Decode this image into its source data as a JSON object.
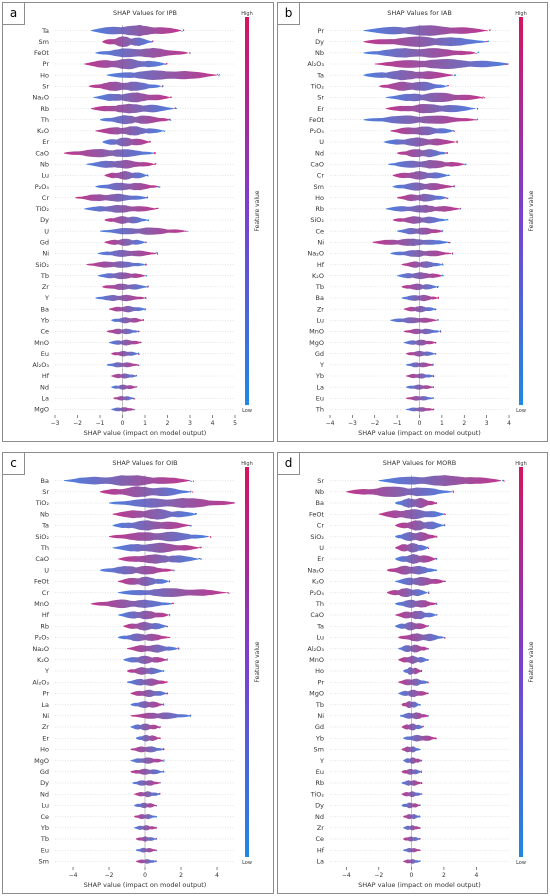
{
  "chart_data": [
    {
      "panel_letter": "a",
      "type": "violin",
      "title": "SHAP Values for IPB",
      "xlabel": "SHAP value (impact on model output)",
      "colorbar": {
        "label": "Feature value",
        "high": "High",
        "low": "Low",
        "low_color": "#1e88e5",
        "high_color": "#d5145f"
      },
      "xlim": [
        -3,
        5
      ],
      "xticks": [
        "−3",
        "−2",
        "−1",
        "0",
        "1",
        "2",
        "3",
        "4",
        "5"
      ],
      "features": [
        "Ta",
        "Sm",
        "FeOt",
        "Pr",
        "Ho",
        "Sr",
        "Na₂O",
        "Rb",
        "Th",
        "K₂O",
        "Er",
        "CaO",
        "Nb",
        "Lu",
        "P₂O₅",
        "Cr",
        "TiO₂",
        "Dy",
        "U",
        "Gd",
        "Ni",
        "SiO₂",
        "Tb",
        "Zr",
        "Y",
        "Ba",
        "Yb",
        "Ce",
        "MnO",
        "Eu",
        "Al₂O₃",
        "Hf",
        "Nd",
        "La",
        "MgO"
      ],
      "ranges": [
        [
          -1.4,
          2.6
        ],
        [
          -0.9,
          1.3
        ],
        [
          -1.2,
          2.9
        ],
        [
          -1.7,
          1.9
        ],
        [
          -0.7,
          4.2
        ],
        [
          -1.5,
          1.7
        ],
        [
          -1.3,
          2.1
        ],
        [
          -1.4,
          2.3
        ],
        [
          -1.0,
          2.1
        ],
        [
          -1.2,
          1.8
        ],
        [
          -0.9,
          1.2
        ],
        [
          -2.6,
          1.4
        ],
        [
          -1.6,
          1.4
        ],
        [
          -0.8,
          1.1
        ],
        [
          -1.2,
          1.6
        ],
        [
          -2.1,
          1.1
        ],
        [
          -1.7,
          1.5
        ],
        [
          -0.8,
          1.1
        ],
        [
          -1.0,
          2.8
        ],
        [
          -0.8,
          1.0
        ],
        [
          -1.1,
          1.5
        ],
        [
          -1.6,
          1.0
        ],
        [
          -1.1,
          1.0
        ],
        [
          -0.9,
          1.1
        ],
        [
          -1.2,
          1.0
        ],
        [
          -0.6,
          1.0
        ],
        [
          -0.5,
          0.9
        ],
        [
          -0.7,
          0.7
        ],
        [
          -0.6,
          0.8
        ],
        [
          -0.5,
          0.7
        ],
        [
          -0.7,
          0.7
        ],
        [
          -0.5,
          0.6
        ],
        [
          -0.5,
          0.6
        ],
        [
          -0.4,
          0.5
        ],
        [
          -0.5,
          0.5
        ]
      ]
    },
    {
      "panel_letter": "b",
      "type": "violin",
      "title": "SHAP Values for IAB",
      "xlabel": "SHAP value (impact on model output)",
      "colorbar": {
        "label": "Feature value",
        "high": "High",
        "low": "Low",
        "low_color": "#1e88e5",
        "high_color": "#d5145f"
      },
      "xlim": [
        -4,
        4
      ],
      "xticks": [
        "−4",
        "−3",
        "−2",
        "−1",
        "0",
        "1",
        "2",
        "3",
        "4"
      ],
      "features": [
        "Pr",
        "Dy",
        "Nb",
        "Al₂O₃",
        "Ta",
        "TiO₂",
        "Sr",
        "Er",
        "FeOt",
        "P₂O₅",
        "U",
        "Nd",
        "CaO",
        "Cr",
        "Sm",
        "Ho",
        "Rb",
        "SiO₂",
        "Ce",
        "Ni",
        "Na₂O",
        "Hf",
        "K₂O",
        "Tb",
        "Ba",
        "Zr",
        "Lu",
        "MnO",
        "MgO",
        "Gd",
        "Y",
        "Yb",
        "La",
        "Eu",
        "Th"
      ],
      "ranges": [
        [
          -2.5,
          3.0
        ],
        [
          -2.5,
          3.0
        ],
        [
          -2.5,
          2.5
        ],
        [
          -2.0,
          4.0
        ],
        [
          -2.5,
          1.5
        ],
        [
          -1.8,
          1.2
        ],
        [
          -1.5,
          2.8
        ],
        [
          -1.5,
          2.5
        ],
        [
          -2.5,
          2.5
        ],
        [
          -1.3,
          1.5
        ],
        [
          -1.6,
          1.6
        ],
        [
          -1.0,
          1.2
        ],
        [
          -1.4,
          2.0
        ],
        [
          -1.2,
          1.3
        ],
        [
          -1.2,
          1.5
        ],
        [
          -1.0,
          1.2
        ],
        [
          -1.5,
          1.8
        ],
        [
          -1.2,
          1.2
        ],
        [
          -1.0,
          1.0
        ],
        [
          -2.1,
          1.3
        ],
        [
          -1.3,
          1.4
        ],
        [
          -0.8,
          1.0
        ],
        [
          -1.0,
          1.0
        ],
        [
          -0.8,
          0.8
        ],
        [
          -0.8,
          0.8
        ],
        [
          -0.7,
          0.7
        ],
        [
          -1.3,
          0.8
        ],
        [
          -0.7,
          0.9
        ],
        [
          -0.7,
          0.7
        ],
        [
          -0.6,
          0.7
        ],
        [
          -0.6,
          0.6
        ],
        [
          -0.6,
          0.6
        ],
        [
          -0.6,
          0.6
        ],
        [
          -0.6,
          0.6
        ],
        [
          -0.6,
          0.6
        ]
      ]
    },
    {
      "panel_letter": "c",
      "type": "violin",
      "title": "SHAP Values for OIB",
      "xlabel": "SHAP value (impact on model output)",
      "colorbar": {
        "label": "Feature value",
        "high": "High",
        "low": "Low",
        "low_color": "#1e88e5",
        "high_color": "#d5145f"
      },
      "xlim": [
        -5,
        5
      ],
      "xticks": [
        "−4",
        "−2",
        "0",
        "2",
        "4"
      ],
      "xtick_values": [
        -4,
        -2,
        0,
        2,
        4
      ],
      "features": [
        "Ba",
        "Sr",
        "TiO₂",
        "Nb",
        "Ta",
        "SiO₂",
        "Th",
        "CaO",
        "U",
        "FeOt",
        "Cr",
        "MnO",
        "Hf",
        "Rb",
        "P₂O₅",
        "Na₂O",
        "K₂O",
        "Y",
        "Al₂O₃",
        "Pr",
        "La",
        "Ni",
        "Zr",
        "Er",
        "Ho",
        "MgO",
        "Gd",
        "Dy",
        "Nd",
        "Lu",
        "Ce",
        "Yb",
        "Tb",
        "Eu",
        "Sm"
      ],
      "ranges": [
        [
          -4.5,
          2.5
        ],
        [
          -2.5,
          2.5
        ],
        [
          -2.0,
          5.0
        ],
        [
          -1.8,
          2.8
        ],
        [
          -1.8,
          2.5
        ],
        [
          -2.0,
          3.5
        ],
        [
          -1.8,
          3.0
        ],
        [
          -1.5,
          3.0
        ],
        [
          -2.5,
          1.5
        ],
        [
          -1.5,
          1.3
        ],
        [
          -1.5,
          4.5
        ],
        [
          -3.0,
          1.5
        ],
        [
          -1.5,
          1.3
        ],
        [
          -1.2,
          1.2
        ],
        [
          -1.5,
          1.3
        ],
        [
          -1.0,
          1.8
        ],
        [
          -1.2,
          1.2
        ],
        [
          -1.0,
          1.0
        ],
        [
          -1.0,
          1.2
        ],
        [
          -0.8,
          1.2
        ],
        [
          -0.8,
          1.0
        ],
        [
          -0.8,
          2.5
        ],
        [
          -0.8,
          0.8
        ],
        [
          -0.5,
          0.8
        ],
        [
          -0.8,
          1.0
        ],
        [
          -0.8,
          1.0
        ],
        [
          -0.8,
          1.0
        ],
        [
          -0.7,
          0.8
        ],
        [
          -0.6,
          0.8
        ],
        [
          -0.6,
          0.6
        ],
        [
          -0.6,
          0.6
        ],
        [
          -0.6,
          0.6
        ],
        [
          -0.5,
          0.6
        ],
        [
          -0.5,
          0.6
        ],
        [
          -0.5,
          0.6
        ]
      ]
    },
    {
      "panel_letter": "d",
      "type": "violin",
      "title": "SHAP Values for MORB",
      "xlabel": "SHAP value (impact on model output)",
      "colorbar": {
        "label": "Feature value",
        "high": "High",
        "low": "Low",
        "low_color": "#1e88e5",
        "high_color": "#d5145f"
      },
      "xlim": [
        -5,
        6
      ],
      "xticks": [
        "−4",
        "−2",
        "0",
        "2",
        "4"
      ],
      "xtick_values": [
        -4,
        -2,
        0,
        2,
        4
      ],
      "features": [
        "Sr",
        "Nb",
        "Ba",
        "FeOt",
        "Cr",
        "SiO₂",
        "U",
        "Er",
        "Na₂O",
        "K₂O",
        "P₂O₅",
        "Th",
        "CaO",
        "Ta",
        "Lu",
        "Al₂O₃",
        "MnO",
        "Ho",
        "Pr",
        "MgO",
        "Tb",
        "Ni",
        "Gd",
        "Yb",
        "Sm",
        "Y",
        "Eu",
        "Rb",
        "TiO₂",
        "Dy",
        "Nd",
        "Zr",
        "Ce",
        "Hf",
        "La"
      ],
      "ranges": [
        [
          -2.0,
          5.5
        ],
        [
          -4.0,
          2.5
        ],
        [
          -1.0,
          1.5
        ],
        [
          -2.0,
          2.0
        ],
        [
          -1.0,
          2.0
        ],
        [
          -1.0,
          1.5
        ],
        [
          -1.0,
          1.0
        ],
        [
          -1.0,
          1.5
        ],
        [
          -1.5,
          1.5
        ],
        [
          -1.0,
          2.0
        ],
        [
          -1.5,
          1.0
        ],
        [
          -1.0,
          1.5
        ],
        [
          -1.0,
          1.5
        ],
        [
          -1.0,
          1.0
        ],
        [
          -0.8,
          2.0
        ],
        [
          -0.8,
          1.0
        ],
        [
          -0.8,
          1.0
        ],
        [
          -0.5,
          0.6
        ],
        [
          -0.8,
          1.0
        ],
        [
          -0.8,
          1.0
        ],
        [
          -0.6,
          0.5
        ],
        [
          -0.7,
          1.0
        ],
        [
          -0.6,
          0.7
        ],
        [
          -0.5,
          1.5
        ],
        [
          -0.6,
          0.5
        ],
        [
          -0.5,
          0.6
        ],
        [
          -0.6,
          0.6
        ],
        [
          -0.6,
          0.6
        ],
        [
          -0.6,
          0.6
        ],
        [
          -0.6,
          0.5
        ],
        [
          -0.5,
          0.5
        ],
        [
          -0.5,
          0.5
        ],
        [
          -0.5,
          0.5
        ],
        [
          -0.5,
          0.5
        ],
        [
          -0.5,
          0.5
        ]
      ]
    }
  ]
}
